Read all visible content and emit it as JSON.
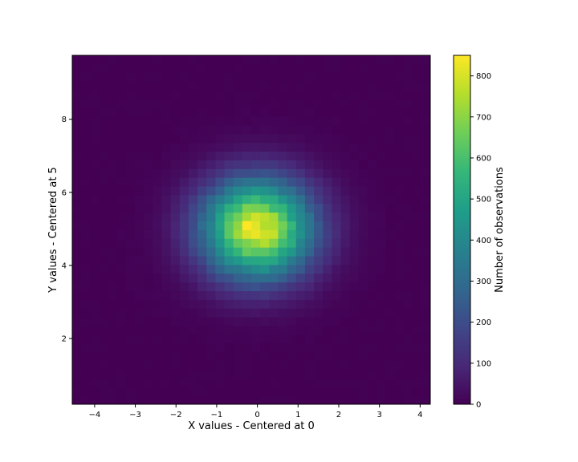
{
  "chart_data": {
    "type": "heatmap",
    "title": "",
    "xlabel": "X values - Centered at 0",
    "ylabel": "Y values - Centered at 5",
    "colorbar_label": "Number of observations",
    "colormap": "viridis",
    "xlim": [
      -4.55,
      4.25
    ],
    "ylim": [
      0.2,
      9.75
    ],
    "x_ticks": [
      -4,
      -3,
      -2,
      -1,
      0,
      1,
      2,
      3,
      4
    ],
    "x_tick_labels": [
      "−4",
      "−3",
      "−2",
      "−1",
      "0",
      "1",
      "2",
      "3",
      "4"
    ],
    "y_ticks": [
      2,
      4,
      6,
      8
    ],
    "y_tick_labels": [
      "2",
      "4",
      "6",
      "8"
    ],
    "colorbar_range": [
      0,
      850
    ],
    "colorbar_ticks": [
      0,
      100,
      200,
      300,
      400,
      500,
      600,
      700,
      800
    ],
    "colorbar_tick_labels": [
      "0",
      "100",
      "200",
      "300",
      "400",
      "500",
      "600",
      "700",
      "800"
    ],
    "bins": 40,
    "distribution": {
      "x_center": 0,
      "y_center": 5,
      "sigma_x": 0.95,
      "sigma_y": 0.95,
      "peak_count": 850,
      "peak_location": [
        -0.25,
        5.05
      ]
    },
    "grid": false
  }
}
